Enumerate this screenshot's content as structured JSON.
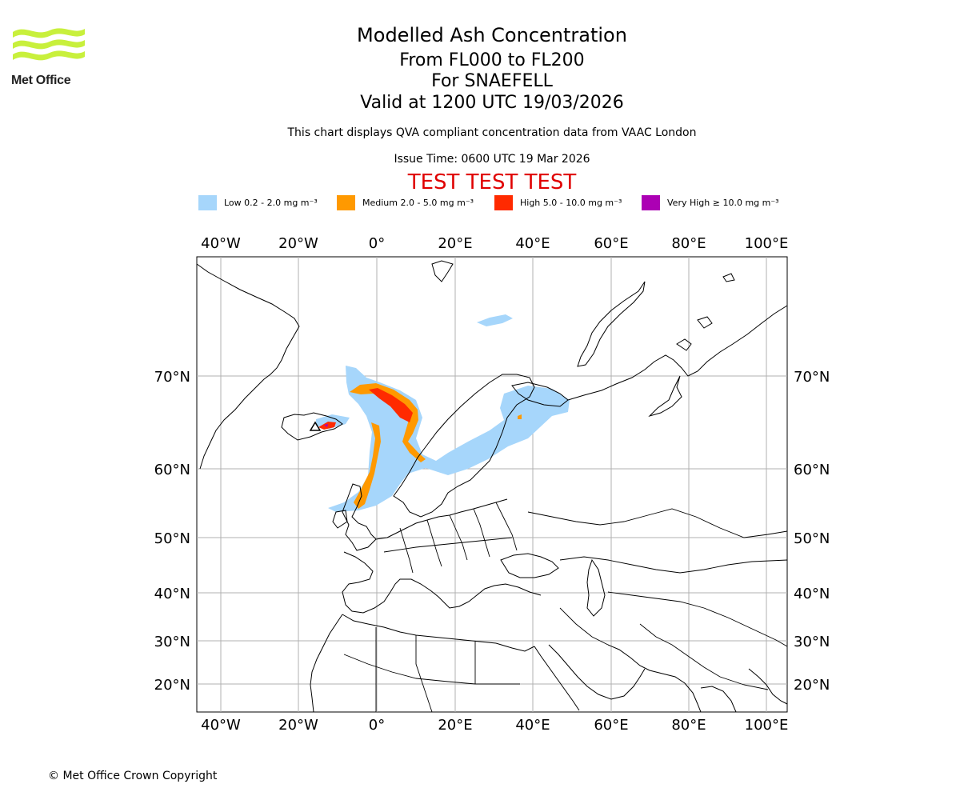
{
  "header": {
    "title": "Modelled Ash Concentration",
    "levels": "From FL000 to FL200",
    "volcano": "For SNAEFELL",
    "valid": "Valid at 1200 UTC 19/03/2026",
    "note": "This chart displays QVA compliant concentration data from VAAC London",
    "issue": "Issue Time: 0600 UTC 19 Mar 2026",
    "test": "TEST TEST TEST"
  },
  "logo": {
    "text": "Met Office",
    "color": "#c8f03c"
  },
  "legend": [
    {
      "label": "Low 0.2 - 2.0 mg m⁻³",
      "color": "#a6d6fb"
    },
    {
      "label": "Medium 2.0 - 5.0 mg m⁻³",
      "color": "#ff9900"
    },
    {
      "label": "High 5.0 - 10.0 mg m⁻³",
      "color": "#ff2a00"
    },
    {
      "label": "Very High  ≥  10.0 mg m⁻³",
      "color": "#ac00b4"
    }
  ],
  "map": {
    "lon_labels": [
      "40°W",
      "20°W",
      "0°",
      "20°E",
      "40°E",
      "60°E",
      "80°E",
      "100°E"
    ],
    "lat_labels": [
      "70°N",
      "60°N",
      "50°N",
      "40°N",
      "30°N",
      "20°N"
    ],
    "grid": true
  },
  "footer": {
    "copyright": "© Met Office Crown Copyright"
  }
}
